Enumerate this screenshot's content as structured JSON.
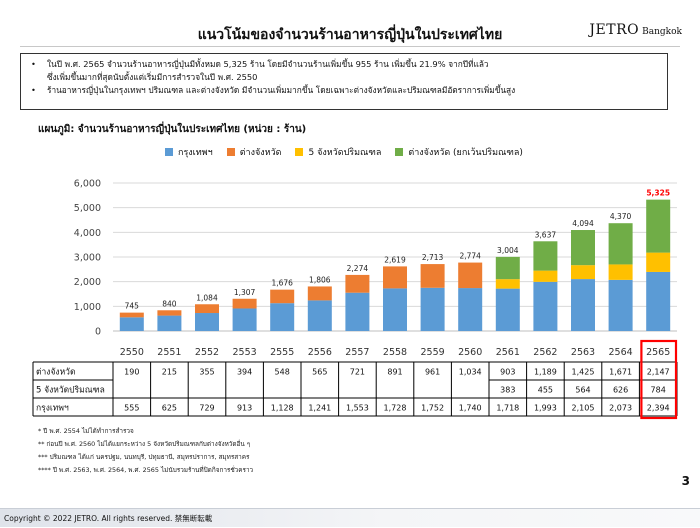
{
  "header": {
    "title": "แนวโน้มของจำนวนร้านอาหารญี่ปุ่นในประเทศไทย",
    "logo_main": "JETRO",
    "logo_sub": "Bangkok"
  },
  "summary": {
    "bullet1_line1": "ในปี พ.ศ. 2565 จำนวนร้านอาหารญี่ปุ่นมีทั้งหมด 5,325 ร้าน  โดยมีจำนวนร้านเพิ่มขึ้น 955 ร้าน เพิ่มขึ้น 21.9% จากปีที่แล้ว",
    "bullet1_line2": "ซึ่งเพิ่มขึ้นมากที่สุดนับตั้งแต่เริ่มมีการสำรวจในปี พ.ศ. 2550",
    "bullet2": "ร้านอาหารญี่ปุ่นในกรุงเทพฯ ปริมณฑล และต่างจังหวัด มีจำนวนเพิ่มมากขึ้น โดยเฉพาะต่างจังหวัดและปริมณฑลมีอัตราการเพิ่มขึ้นสูง",
    "bullet_symbol": "•"
  },
  "chart_title": "แผนภูมิ: จำนวนร้านอาหารญี่ปุ่นในประเทศไทย (หน่วย : ร้าน)",
  "chart_data": {
    "type": "bar",
    "stacked": true,
    "categories": [
      "2550",
      "2551",
      "2552",
      "2553",
      "2555",
      "2556",
      "2557",
      "2558",
      "2559",
      "2560",
      "2561",
      "2562",
      "2563",
      "2564",
      "2565"
    ],
    "y_ticks": [
      "0",
      "1,000",
      "2,000",
      "3,000",
      "4,000",
      "5,000",
      "6,000"
    ],
    "ylim": [
      0,
      6000
    ],
    "grid": true,
    "legend_position": "top",
    "series": [
      {
        "name": "กรุงเทพฯ",
        "color": "#5b9bd5",
        "values": [
          555,
          625,
          729,
          913,
          1128,
          1241,
          1553,
          1728,
          1752,
          1740,
          1718,
          1993,
          2105,
          2073,
          2394
        ]
      },
      {
        "name": "ต่างจังหวัด",
        "color": "#ed7d31",
        "values": [
          190,
          215,
          355,
          394,
          548,
          565,
          721,
          891,
          961,
          1034,
          null,
          null,
          null,
          null,
          null
        ]
      },
      {
        "name": "5 จังหวัดปริมณฑล",
        "color": "#ffc000",
        "values": [
          null,
          null,
          null,
          null,
          null,
          null,
          null,
          null,
          null,
          null,
          383,
          455,
          564,
          626,
          784
        ]
      },
      {
        "name": "ต่างจังหวัด (ยกเว้นปริมณฑล)",
        "color": "#70ad47",
        "values": [
          null,
          null,
          null,
          null,
          null,
          null,
          null,
          null,
          null,
          null,
          903,
          1189,
          1425,
          1671,
          2147
        ]
      }
    ],
    "totals": [
      "745",
      "840",
      "1,084",
      "1,307",
      "1,676",
      "1,806",
      "2,274",
      "2,619",
      "2,713",
      "2,774",
      "3,004",
      "3,637",
      "4,094",
      "4,370",
      "5,325"
    ],
    "total_values": [
      745,
      840,
      1084,
      1307,
      1676,
      1806,
      2274,
      2619,
      2713,
      2774,
      3004,
      3637,
      4094,
      4370,
      5325
    ],
    "highlight_index": 14,
    "highlight_color": "#ff0000",
    "table": {
      "rows": [
        {
          "label": "ต่างจังหวัด",
          "cells": [
            "190",
            "215",
            "355",
            "394",
            "548",
            "565",
            "721",
            "891",
            "961",
            "1,034",
            "903",
            "1,189",
            "1,425",
            "1,671",
            "2,147"
          ],
          "split_index": 10
        },
        {
          "label": "5 จังหวัดปริมณฑล",
          "cells": [
            "",
            "",
            "",
            "",
            "",
            "",
            "",
            "",
            "",
            "",
            "383",
            "455",
            "564",
            "626",
            "784"
          ]
        },
        {
          "label": "กรุงเทพฯ",
          "cells": [
            "555",
            "625",
            "729",
            "913",
            "1,128",
            "1,241",
            "1,553",
            "1,728",
            "1,752",
            "1,740",
            "1,718",
            "1,993",
            "2,105",
            "2,073",
            "2,394"
          ]
        }
      ]
    }
  },
  "footnotes": [
    "* ปี พ.ศ. 2554 ไม่ได้ทำการสำรวจ",
    "** ก่อนปี พ.ศ. 2560 ไม่ได้แยกระหว่าง 5 จังหวัดปริมณฑลกับต่างจังหวัดอื่น ๆ",
    "*** ปริมณฑล ได้แก่ นครปฐม, นนทบุรี, ปทุมธานี, สมุทรปราการ, สมุทรสาคร",
    "**** ปี พ.ศ. 2563, พ.ศ. 2564, พ.ศ. 2565 ไม่นับรวมร้านที่ปิดกิจการชั่วคราว"
  ],
  "page_number": "3",
  "footer_text": "Copyright © 2022 JETRO. All rights reserved. 禁無断転載"
}
